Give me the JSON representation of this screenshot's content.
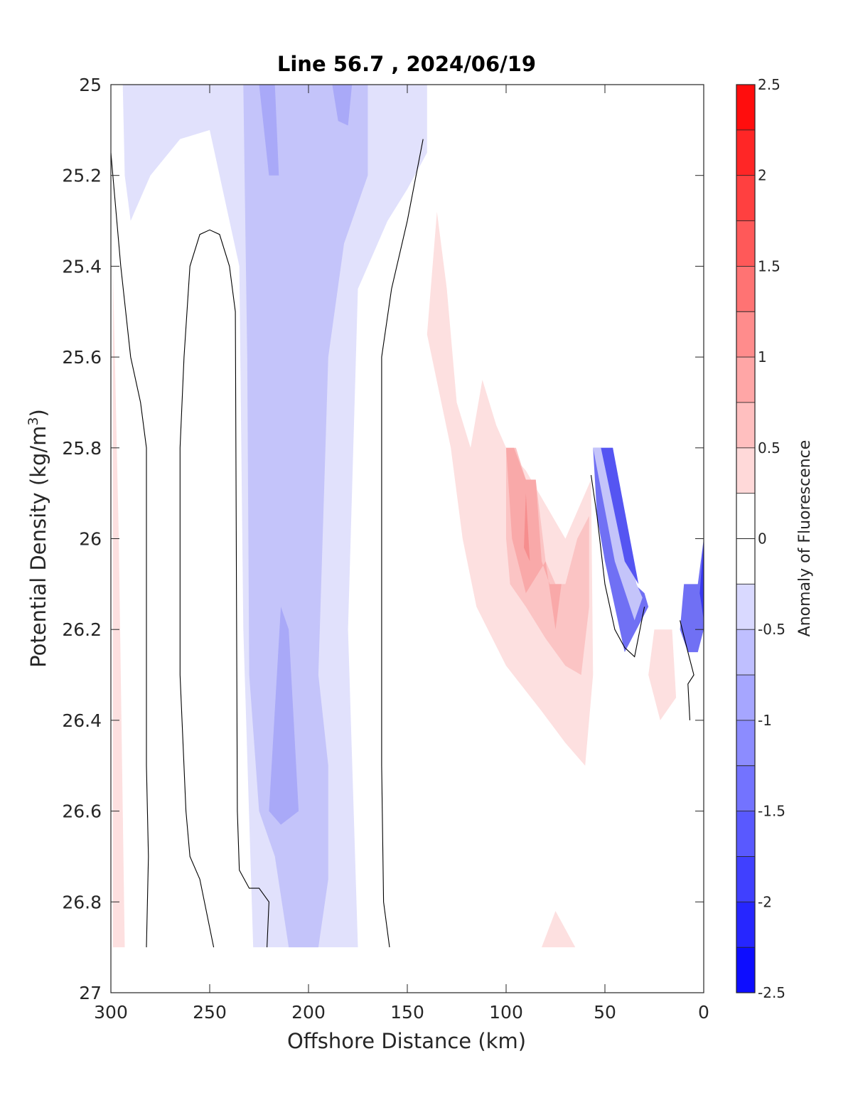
{
  "chart_data": {
    "type": "contour",
    "title": "Line 56.7 , 2024/06/19",
    "xlabel": "Offshore Distance (km)",
    "ylabel_main": "Potential Density (kg/m",
    "ylabel_sup": "3",
    "ylabel_close": ")",
    "xlim": [
      300,
      0
    ],
    "ylim": [
      25,
      27
    ],
    "y_reversed": true,
    "xticks": [
      "300",
      "250",
      "200",
      "150",
      "100",
      "50",
      "0"
    ],
    "yticks": [
      "25",
      "25.2",
      "25.4",
      "25.6",
      "25.8",
      "26",
      "26.2",
      "26.4",
      "26.6",
      "26.8",
      "27"
    ],
    "colorbar": {
      "label": "Anomaly of Fluorescence",
      "range": [
        -2.5,
        2.5
      ],
      "step": 0.25,
      "ticks": [
        "2.5",
        "2",
        "1.5",
        "1",
        "0.5",
        "0",
        "-0.5",
        "-1",
        "-1.5",
        "-2",
        "-2.5"
      ]
    },
    "regions": [
      {
        "level": -0.375,
        "color": "#e1e1fc",
        "points": [
          [
            294,
            25
          ],
          [
            140,
            25
          ],
          [
            140,
            25.15
          ],
          [
            150,
            25.23
          ],
          [
            160,
            25.3
          ],
          [
            175,
            25.45
          ],
          [
            180,
            26.2
          ],
          [
            175,
            26.9
          ],
          [
            228,
            26.9
          ],
          [
            233,
            26.2
          ],
          [
            235,
            25.4
          ],
          [
            250,
            25.1
          ],
          [
            265,
            25.12
          ],
          [
            280,
            25.2
          ],
          [
            290,
            25.3
          ],
          [
            293,
            25.2
          ]
        ]
      },
      {
        "level": -0.625,
        "color": "#c4c4fa",
        "points": [
          [
            233,
            25
          ],
          [
            170,
            25
          ],
          [
            170,
            25.2
          ],
          [
            182,
            25.35
          ],
          [
            190,
            25.6
          ],
          [
            195,
            26.3
          ],
          [
            190,
            26.5
          ],
          [
            190,
            26.75
          ],
          [
            195,
            26.9
          ],
          [
            210,
            26.9
          ],
          [
            217,
            26.7
          ],
          [
            225,
            26.6
          ],
          [
            230,
            26.3
          ],
          [
            231,
            25.6
          ],
          [
            232,
            25.3
          ]
        ]
      },
      {
        "level": -0.875,
        "color": "#a9a9f8",
        "points": [
          [
            225,
            25
          ],
          [
            217,
            25
          ],
          [
            215,
            25.2
          ],
          [
            220,
            25.2
          ]
        ]
      },
      {
        "level": -0.875,
        "color": "#a9a9f8",
        "points": [
          [
            188,
            25
          ],
          [
            178,
            25
          ],
          [
            180,
            25.09
          ],
          [
            185,
            25.08
          ]
        ]
      },
      {
        "level": -0.875,
        "color": "#a9a9f8",
        "points": [
          [
            214,
            26.15
          ],
          [
            220,
            26.6
          ],
          [
            214,
            26.63
          ],
          [
            205,
            26.6
          ],
          [
            210,
            26.2
          ]
        ]
      },
      {
        "level": 0.375,
        "color": "#fde0e0",
        "points": [
          [
            299,
            25.4
          ],
          [
            299,
            26.9
          ],
          [
            293,
            26.9
          ],
          [
            294,
            26.6
          ],
          [
            296,
            26
          ]
        ]
      },
      {
        "level": 0.375,
        "color": "#fde0e0",
        "points": [
          [
            135,
            25.28
          ],
          [
            130,
            25.45
          ],
          [
            125,
            25.7
          ],
          [
            118,
            25.8
          ],
          [
            112,
            25.65
          ],
          [
            105,
            25.75
          ],
          [
            100,
            25.8
          ],
          [
            90,
            25.85
          ],
          [
            70,
            26
          ],
          [
            57,
            25.87
          ],
          [
            56,
            26.3
          ],
          [
            60,
            26.5
          ],
          [
            70,
            26.45
          ],
          [
            82,
            26.38
          ],
          [
            100,
            26.28
          ],
          [
            115,
            26.15
          ],
          [
            122,
            26
          ],
          [
            128,
            25.8
          ],
          [
            140,
            25.55
          ]
        ]
      },
      {
        "level": 0.375,
        "color": "#fde0e0",
        "points": [
          [
            25,
            26.2
          ],
          [
            16,
            26.2
          ],
          [
            14,
            26.35
          ],
          [
            22,
            26.4
          ],
          [
            28,
            26.3
          ]
        ]
      },
      {
        "level": 0.375,
        "color": "#fde0e0",
        "points": [
          [
            82,
            26.9
          ],
          [
            65,
            26.9
          ],
          [
            70,
            26.86
          ],
          [
            75,
            26.82
          ]
        ]
      },
      {
        "level": 0.625,
        "color": "#fbc4c4",
        "points": [
          [
            100,
            25.8
          ],
          [
            95,
            25.8
          ],
          [
            90,
            25.87
          ],
          [
            85,
            25.87
          ],
          [
            80,
            26.05
          ],
          [
            75,
            26.1
          ],
          [
            70,
            26.1
          ],
          [
            64,
            26
          ],
          [
            58,
            25.95
          ],
          [
            58,
            26.15
          ],
          [
            62,
            26.3
          ],
          [
            70,
            26.28
          ],
          [
            80,
            26.22
          ],
          [
            90,
            26.15
          ],
          [
            98,
            26.1
          ],
          [
            100,
            26
          ]
        ]
      },
      {
        "level": 0.875,
        "color": "#f9a9a9",
        "points": [
          [
            100,
            25.8
          ],
          [
            96,
            25.8
          ],
          [
            90,
            25.87
          ],
          [
            85,
            25.87
          ],
          [
            82,
            26.05
          ],
          [
            78,
            26.1
          ],
          [
            72,
            26.1
          ],
          [
            75,
            26.2
          ],
          [
            80,
            26.05
          ],
          [
            90,
            26.12
          ],
          [
            97,
            26
          ]
        ]
      },
      {
        "level": 1.125,
        "color": "#f68e8e",
        "points": [
          [
            90,
            25.9
          ],
          [
            88,
            26.05
          ],
          [
            91,
            26.02
          ]
        ]
      },
      {
        "level": -1.375,
        "color": "#7070f4",
        "points": [
          [
            56,
            25.8
          ],
          [
            46,
            25.8
          ],
          [
            35,
            26.1
          ],
          [
            30,
            26.12
          ],
          [
            28,
            26.15
          ],
          [
            40,
            26.25
          ],
          [
            50,
            26.05
          ],
          [
            54,
            25.95
          ]
        ]
      },
      {
        "level": -0.625,
        "color": "#c4c4fa",
        "points": [
          [
            56,
            25.8
          ],
          [
            48,
            25.8
          ],
          [
            34,
            26.1
          ],
          [
            31,
            26.13
          ],
          [
            35,
            26.18
          ],
          [
            45,
            26.05
          ]
        ]
      },
      {
        "level": -1.625,
        "color": "#5555f2",
        "points": [
          [
            52,
            25.8
          ],
          [
            46,
            25.8
          ],
          [
            33,
            26.1
          ],
          [
            40,
            26.05
          ]
        ]
      },
      {
        "level": -1.375,
        "color": "#7070f4",
        "points": [
          [
            0,
            26
          ],
          [
            3,
            26.1
          ],
          [
            10,
            26.1
          ],
          [
            12,
            26.2
          ],
          [
            8,
            26.25
          ],
          [
            3,
            26.25
          ],
          [
            0,
            26.2
          ]
        ]
      },
      {
        "level": -1.875,
        "color": "#3939ef",
        "points": [
          [
            0,
            26
          ],
          [
            2,
            26.12
          ],
          [
            0,
            26.18
          ]
        ]
      }
    ],
    "contours": [
      [
        [
          300,
          25.15
        ],
        [
          295,
          25.4
        ],
        [
          290,
          25.6
        ],
        [
          285,
          25.7
        ],
        [
          282,
          25.8
        ],
        [
          282,
          26.5
        ],
        [
          281,
          26.7
        ],
        [
          282,
          26.9
        ]
      ],
      [
        [
          248,
          26.9
        ],
        [
          255,
          26.75
        ],
        [
          260,
          26.7
        ],
        [
          262,
          26.6
        ],
        [
          265,
          26.3
        ],
        [
          265,
          25.8
        ],
        [
          263,
          25.6
        ],
        [
          260,
          25.4
        ],
        [
          255,
          25.33
        ],
        [
          250,
          25.32
        ],
        [
          245,
          25.33
        ],
        [
          240,
          25.4
        ],
        [
          237,
          25.5
        ],
        [
          236,
          26.6
        ],
        [
          235,
          26.73
        ],
        [
          230,
          26.77
        ],
        [
          225,
          26.77
        ],
        [
          220,
          26.8
        ],
        [
          221,
          26.9
        ]
      ],
      [
        [
          159,
          26.9
        ],
        [
          162,
          26.8
        ],
        [
          163,
          26.5
        ],
        [
          163,
          25.6
        ],
        [
          158,
          25.45
        ],
        [
          150,
          25.3
        ],
        [
          142,
          25.12
        ]
      ],
      [
        [
          57,
          25.86
        ],
        [
          54,
          25.95
        ],
        [
          50,
          26.1
        ],
        [
          45,
          26.2
        ],
        [
          40,
          26.24
        ],
        [
          35,
          26.26
        ],
        [
          30,
          26.15
        ]
      ],
      [
        [
          12,
          26.18
        ],
        [
          8,
          26.25
        ],
        [
          5,
          26.3
        ],
        [
          8,
          26.32
        ],
        [
          7,
          26.4
        ]
      ]
    ]
  }
}
